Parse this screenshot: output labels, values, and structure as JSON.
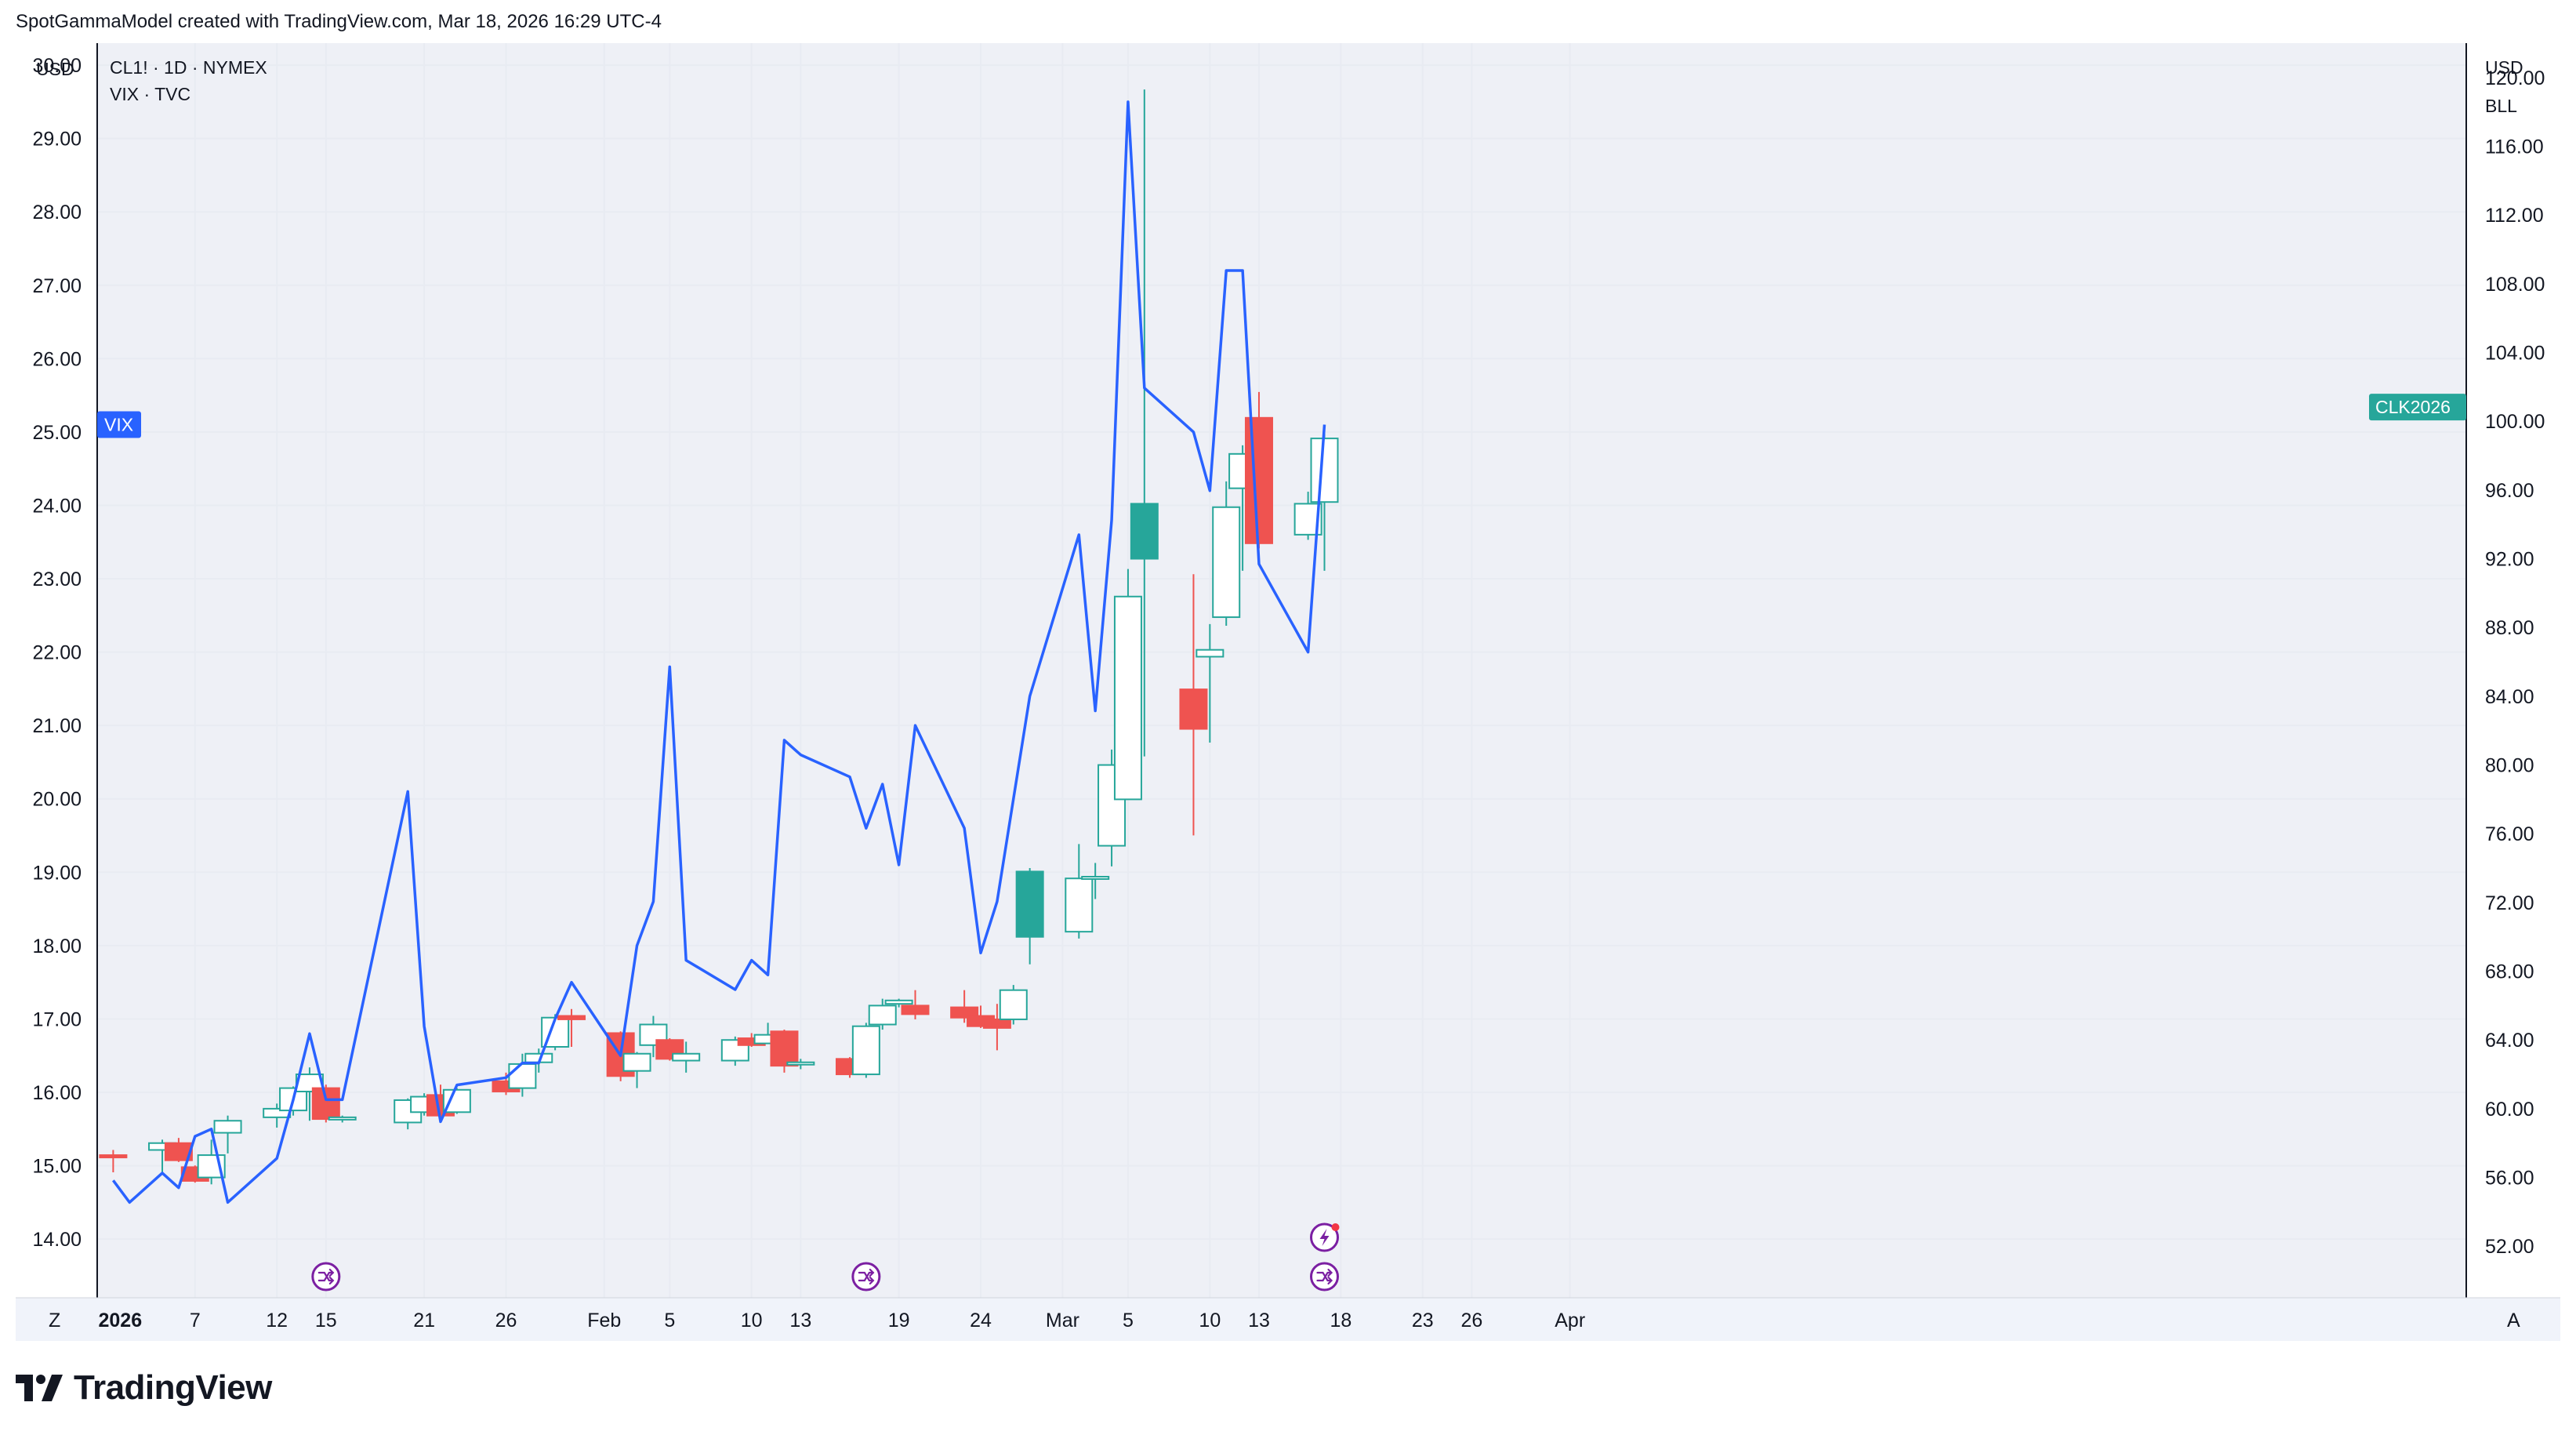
{
  "attribution": "SpotGammaModel created with TradingView.com, Mar 18, 2026 16:29 UTC-4",
  "brand": "TradingView",
  "colors": {
    "up": "#26a69a",
    "down": "#ef5350",
    "vix_line": "#2962ff",
    "grid": "#e8ebf2",
    "axis": "#131722"
  },
  "chart_data": {
    "type": "line",
    "panes": [
      "candlestick",
      "line"
    ],
    "left_axis": {
      "currency": "USD",
      "ticks": [
        "30.00",
        "29.00",
        "28.00",
        "27.00",
        "26.00",
        "25.00",
        "24.00",
        "23.00",
        "22.00",
        "21.00",
        "20.00",
        "19.00",
        "18.00",
        "17.00",
        "16.00",
        "15.00",
        "14.00"
      ],
      "range": [
        13.2,
        30.3
      ]
    },
    "right_axis": {
      "currency": "USD",
      "unit": "BLL",
      "ticks": [
        "120.00",
        "116.00",
        "112.00",
        "108.00",
        "104.00",
        "100.00",
        "96.00",
        "92.00",
        "88.00",
        "84.00",
        "80.00",
        "76.00",
        "72.00",
        "68.00",
        "64.00",
        "60.00",
        "56.00",
        "52.00"
      ],
      "range": [
        49,
        122
      ]
    },
    "x_labels": [
      "2026",
      "7",
      "12",
      "15",
      "21",
      "26",
      "Feb",
      "5",
      "10",
      "13",
      "19",
      "24",
      "Mar",
      "5",
      "10",
      "13",
      "18",
      "23",
      "26",
      "Apr"
    ],
    "x_axis_left_button": "Z",
    "x_axis_right_button": "A",
    "legend": [
      "CL1! · 1D · NYMEX",
      "VIX · TVC"
    ],
    "series": [
      {
        "name": "VIX · TVC",
        "axis": "left",
        "label_tag": "VIX",
        "points": [
          [
            "2026-01-02",
            14.8
          ],
          [
            "2026-01-03",
            14.5
          ],
          [
            "2026-01-05",
            14.9
          ],
          [
            "2026-01-06",
            14.7
          ],
          [
            "2026-01-07",
            15.4
          ],
          [
            "2026-01-08",
            15.5
          ],
          [
            "2026-01-09",
            14.5
          ],
          [
            "2026-01-12",
            15.1
          ],
          [
            "2026-01-13",
            15.9
          ],
          [
            "2026-01-14",
            16.8
          ],
          [
            "2026-01-15",
            15.9
          ],
          [
            "2026-01-16",
            15.9
          ],
          [
            "2026-01-20",
            20.1
          ],
          [
            "2026-01-21",
            16.9
          ],
          [
            "2026-01-22",
            15.6
          ],
          [
            "2026-01-23",
            16.1
          ],
          [
            "2026-01-26",
            16.2
          ],
          [
            "2026-01-27",
            16.4
          ],
          [
            "2026-01-28",
            16.4
          ],
          [
            "2026-01-29",
            17.0
          ],
          [
            "2026-01-30",
            17.5
          ],
          [
            "2026-02-02",
            16.5
          ],
          [
            "2026-02-03",
            18.0
          ],
          [
            "2026-02-04",
            18.6
          ],
          [
            "2026-02-05",
            21.8
          ],
          [
            "2026-02-06",
            17.8
          ],
          [
            "2026-02-09",
            17.4
          ],
          [
            "2026-02-10",
            17.8
          ],
          [
            "2026-02-11",
            17.6
          ],
          [
            "2026-02-12",
            20.8
          ],
          [
            "2026-02-13",
            20.6
          ],
          [
            "2026-02-16",
            20.3
          ],
          [
            "2026-02-17",
            19.6
          ],
          [
            "2026-02-18",
            20.2
          ],
          [
            "2026-02-19",
            19.1
          ],
          [
            "2026-02-20",
            21.0
          ],
          [
            "2026-02-23",
            19.6
          ],
          [
            "2026-02-24",
            17.9
          ],
          [
            "2026-02-25",
            18.6
          ],
          [
            "2026-02-26",
            20.0
          ],
          [
            "2026-02-27",
            21.4
          ],
          [
            "2026-03-02",
            23.6
          ],
          [
            "2026-03-03",
            21.2
          ],
          [
            "2026-03-04",
            23.8
          ],
          [
            "2026-03-05",
            29.5
          ],
          [
            "2026-03-06",
            25.6
          ],
          [
            "2026-03-09",
            25.0
          ],
          [
            "2026-03-10",
            24.2
          ],
          [
            "2026-03-11",
            27.2
          ],
          [
            "2026-03-12",
            27.2
          ],
          [
            "2026-03-13",
            23.2
          ],
          [
            "2026-03-16",
            22.0
          ],
          [
            "2026-03-17",
            25.1
          ]
        ]
      },
      {
        "name": "CL1! · 1D · NYMEX",
        "axis": "right",
        "label_tag": "CLK2026",
        "kind": "candlestick",
        "fields": [
          "date",
          "open",
          "high",
          "low",
          "close"
        ],
        "candles": [
          [
            "2026-01-02",
            57.3,
            57.6,
            56.3,
            57.2
          ],
          [
            "2026-01-05",
            57.6,
            58.2,
            56.2,
            58.0
          ],
          [
            "2026-01-06",
            58.0,
            58.3,
            56.9,
            57.0
          ],
          [
            "2026-01-07",
            56.6,
            56.7,
            55.7,
            55.8
          ],
          [
            "2026-01-08",
            56.0,
            58.2,
            55.6,
            57.3
          ],
          [
            "2026-01-09",
            58.6,
            59.6,
            57.4,
            59.3
          ],
          [
            "2026-01-12",
            59.5,
            60.3,
            58.9,
            60.0
          ],
          [
            "2026-01-13",
            59.9,
            61.3,
            59.6,
            61.2
          ],
          [
            "2026-01-14",
            61.0,
            62.4,
            59.3,
            62.0
          ],
          [
            "2026-01-15",
            61.2,
            61.4,
            59.2,
            59.4
          ],
          [
            "2026-01-16",
            59.4,
            59.6,
            59.2,
            59.5
          ],
          [
            "2026-01-20",
            59.2,
            60.6,
            58.8,
            60.5
          ],
          [
            "2026-01-21",
            59.8,
            60.9,
            59.6,
            60.7
          ],
          [
            "2026-01-22",
            60.8,
            61.4,
            59.3,
            59.6
          ],
          [
            "2026-01-23",
            59.8,
            61.2,
            59.7,
            61.1
          ],
          [
            "2026-01-26",
            61.6,
            62.1,
            60.8,
            61.0
          ],
          [
            "2026-01-27",
            61.2,
            63.2,
            60.7,
            62.6
          ],
          [
            "2026-01-28",
            62.7,
            63.5,
            62.1,
            63.2
          ],
          [
            "2026-01-29",
            63.6,
            65.5,
            63.4,
            65.3
          ],
          [
            "2026-01-30",
            65.4,
            65.8,
            63.6,
            65.2
          ],
          [
            "2026-02-02",
            64.4,
            64.5,
            61.6,
            61.9
          ],
          [
            "2026-02-03",
            62.2,
            63.3,
            61.2,
            63.2
          ],
          [
            "2026-02-04",
            63.7,
            65.4,
            63.0,
            64.9
          ],
          [
            "2026-02-05",
            64.0,
            64.1,
            62.8,
            62.9
          ],
          [
            "2026-02-06",
            62.8,
            63.9,
            62.1,
            63.2
          ],
          [
            "2026-02-09",
            62.8,
            64.2,
            62.5,
            64.0
          ],
          [
            "2026-02-10",
            64.1,
            64.4,
            63.6,
            63.7
          ],
          [
            "2026-02-11",
            63.8,
            65.0,
            63.8,
            64.3
          ],
          [
            "2026-02-12",
            64.5,
            64.6,
            62.1,
            62.5
          ],
          [
            "2026-02-13",
            62.6,
            62.9,
            62.3,
            62.7
          ],
          [
            "2026-02-16",
            62.9,
            63.0,
            61.8,
            62.0
          ],
          [
            "2026-02-17",
            62.0,
            65.0,
            61.8,
            64.8
          ],
          [
            "2026-02-18",
            64.9,
            66.4,
            64.6,
            66.0
          ],
          [
            "2026-02-19",
            66.1,
            66.4,
            65.9,
            66.3
          ],
          [
            "2026-02-20",
            66.0,
            66.9,
            65.2,
            65.5
          ],
          [
            "2026-02-23",
            65.9,
            66.9,
            65.0,
            65.3
          ],
          [
            "2026-02-24",
            65.4,
            66.0,
            64.7,
            64.8
          ],
          [
            "2026-02-25",
            65.2,
            66.1,
            63.4,
            64.7
          ],
          [
            "2026-02-26",
            65.2,
            67.2,
            64.9,
            66.9
          ],
          [
            "2026-02-27",
            70.0,
            74.0,
            68.4,
            73.8
          ],
          [
            "2026-03-02",
            70.3,
            75.4,
            69.9,
            73.4
          ],
          [
            "2026-03-03",
            73.4,
            74.3,
            72.2,
            73.5
          ],
          [
            "2026-03-04",
            75.3,
            80.9,
            74.1,
            80.0
          ],
          [
            "2026-03-05",
            78.0,
            91.4,
            78.0,
            89.8
          ],
          [
            "2026-03-06",
            92.0,
            119.3,
            80.5,
            95.2
          ],
          [
            "2026-03-09",
            84.4,
            91.1,
            75.9,
            82.1
          ],
          [
            "2026-03-10",
            86.3,
            88.2,
            81.3,
            86.7
          ],
          [
            "2026-03-11",
            88.6,
            96.5,
            88.1,
            95.0
          ],
          [
            "2026-03-12",
            96.1,
            98.6,
            91.3,
            98.1
          ],
          [
            "2026-03-13",
            100.2,
            101.7,
            92.6,
            92.9
          ],
          [
            "2026-03-16",
            93.4,
            95.9,
            93.1,
            95.2
          ],
          [
            "2026-03-17",
            95.3,
            99.7,
            91.3,
            99.0
          ]
        ]
      }
    ],
    "events": [
      {
        "date": "2026-01-15",
        "icon": "split-arrow-icon"
      },
      {
        "date": "2026-02-17",
        "icon": "split-arrow-icon"
      },
      {
        "date": "2026-03-17",
        "icon": "split-arrow-icon"
      },
      {
        "date": "2026-03-17",
        "icon": "lightning-bolt-icon"
      }
    ]
  }
}
